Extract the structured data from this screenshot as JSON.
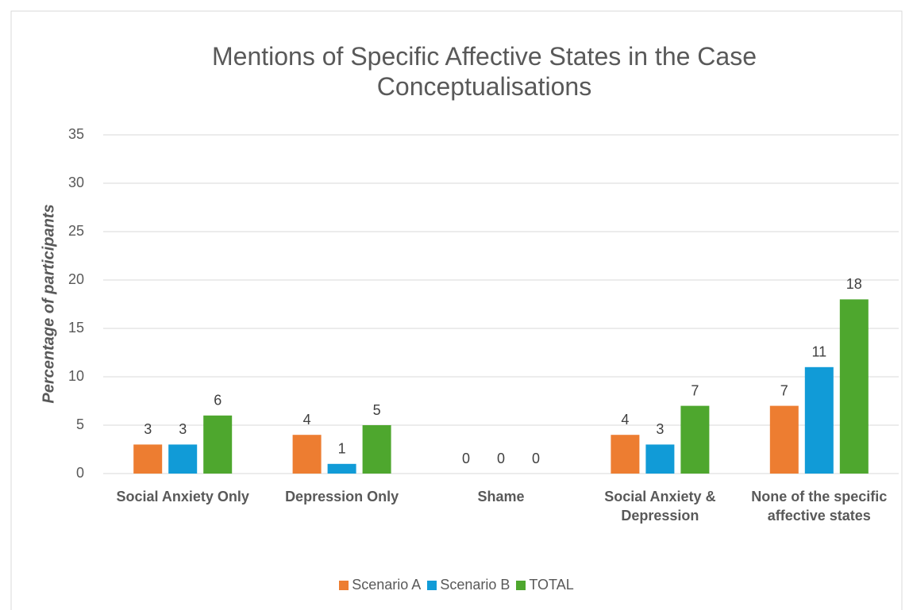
{
  "chart_data": {
    "type": "bar",
    "title": "Mentions of Specific Affective States in the Case Conceptualisations",
    "y_label": "Percentage of participants",
    "categories": [
      "Social Anxiety Only",
      "Depression Only",
      "Shame",
      "Social Anxiety & Depression",
      "None of the specific affective states"
    ],
    "series": [
      {
        "name": "Scenario A",
        "color": "#ed7d31",
        "values": [
          3,
          4,
          0,
          4,
          7
        ]
      },
      {
        "name": "Scenario B",
        "color": "#119bd7",
        "values": [
          3,
          1,
          0,
          3,
          11
        ]
      },
      {
        "name": "TOTAL",
        "color": "#4ea72e",
        "values": [
          6,
          5,
          0,
          7,
          18
        ]
      }
    ],
    "ylim": [
      0,
      35
    ],
    "yticks": [
      0,
      5,
      10,
      15,
      20,
      25,
      30,
      35
    ],
    "grid": true,
    "legend": "bottom"
  }
}
